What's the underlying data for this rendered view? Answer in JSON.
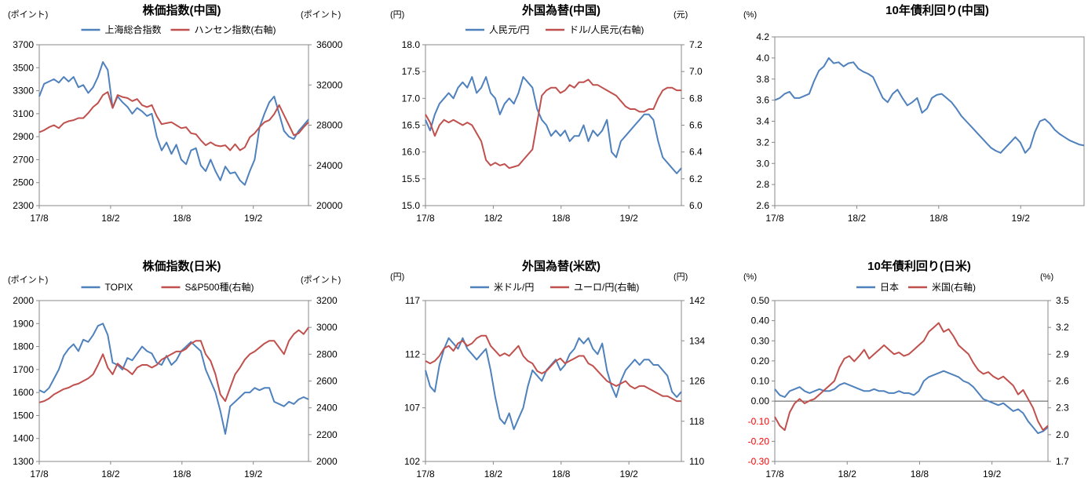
{
  "colors": {
    "blue": "#4F81BD",
    "red": "#C0504D",
    "negative_tick": "#FF0000",
    "axis": "#888888",
    "text": "#000000"
  },
  "chart_data": [
    {
      "type": "line",
      "title": "株価指数(中国)",
      "ylabel_left": "(ポイント)",
      "ylabel_right": "(ポイント)",
      "x_ticks": [
        "17/8",
        "18/2",
        "18/8",
        "19/2"
      ],
      "ylim_left": [
        2300,
        3700
      ],
      "yticks_left": [
        2300,
        2500,
        2700,
        2900,
        3100,
        3300,
        3500,
        3700
      ],
      "ylim_right": [
        20000,
        36000
      ],
      "yticks_right": [
        20000,
        24000,
        28000,
        32000,
        36000
      ],
      "legend_position": "top",
      "zero_line": false,
      "series": [
        {
          "name": "上海総合指数",
          "axis": "left",
          "color": "#4F81BD",
          "values": [
            3250,
            3360,
            3380,
            3400,
            3370,
            3420,
            3380,
            3420,
            3330,
            3350,
            3280,
            3330,
            3420,
            3550,
            3480,
            3150,
            3250,
            3200,
            3160,
            3100,
            3150,
            3120,
            3080,
            3100,
            2900,
            2780,
            2850,
            2750,
            2830,
            2700,
            2660,
            2780,
            2800,
            2650,
            2600,
            2700,
            2600,
            2520,
            2640,
            2580,
            2590,
            2520,
            2480,
            2600,
            2700,
            2980,
            3100,
            3200,
            3250,
            3100,
            2950,
            2900,
            2880,
            2950,
            3000,
            3050
          ]
        },
        {
          "name": "ハンセン指数(右軸)",
          "axis": "right",
          "color": "#C0504D",
          "values": [
            27300,
            27500,
            27800,
            28000,
            27700,
            28200,
            28400,
            28500,
            28700,
            28700,
            29200,
            29800,
            30200,
            31000,
            31300,
            29700,
            31000,
            30800,
            30700,
            30400,
            30600,
            30000,
            29800,
            30000,
            28900,
            28100,
            28200,
            28300,
            28000,
            27700,
            27800,
            27200,
            27100,
            26500,
            26000,
            26300,
            26000,
            25900,
            26000,
            25500,
            26100,
            25500,
            25800,
            26800,
            27200,
            27800,
            28300,
            28500,
            29100,
            30000,
            29000,
            28000,
            27000,
            27200,
            27800,
            28300
          ]
        }
      ]
    },
    {
      "type": "line",
      "title": "外国為替(中国)",
      "ylabel_left": "(円)",
      "ylabel_right": "(元)",
      "x_ticks": [
        "17/8",
        "18/2",
        "18/8",
        "19/2"
      ],
      "ylim_left": [
        15.0,
        18.0
      ],
      "yticks_left": [
        15.0,
        15.5,
        16.0,
        16.5,
        17.0,
        17.5,
        18.0
      ],
      "ylim_right": [
        6.0,
        7.2
      ],
      "yticks_right": [
        6.0,
        6.2,
        6.4,
        6.6,
        6.8,
        7.0,
        7.2
      ],
      "legend_position": "top",
      "zero_line": false,
      "series": [
        {
          "name": "人民元/円",
          "axis": "left",
          "color": "#4F81BD",
          "values": [
            16.6,
            16.4,
            16.7,
            16.9,
            17.0,
            17.1,
            17.0,
            17.2,
            17.3,
            17.2,
            17.4,
            17.1,
            17.2,
            17.4,
            17.1,
            17.0,
            16.7,
            16.9,
            17.0,
            16.9,
            17.1,
            17.4,
            17.3,
            17.2,
            16.8,
            16.6,
            16.5,
            16.3,
            16.4,
            16.3,
            16.4,
            16.2,
            16.3,
            16.3,
            16.5,
            16.2,
            16.4,
            16.3,
            16.4,
            16.6,
            16.0,
            15.9,
            16.2,
            16.3,
            16.4,
            16.5,
            16.6,
            16.7,
            16.7,
            16.6,
            16.2,
            15.9,
            15.8,
            15.7,
            15.6,
            15.7
          ]
        },
        {
          "name": "ドル/人民元(右軸)",
          "axis": "right",
          "color": "#C0504D",
          "values": [
            6.68,
            6.62,
            6.52,
            6.6,
            6.64,
            6.62,
            6.64,
            6.62,
            6.6,
            6.62,
            6.6,
            6.54,
            6.48,
            6.34,
            6.3,
            6.32,
            6.3,
            6.31,
            6.28,
            6.29,
            6.3,
            6.34,
            6.38,
            6.42,
            6.62,
            6.82,
            6.86,
            6.88,
            6.88,
            6.84,
            6.86,
            6.9,
            6.88,
            6.92,
            6.92,
            6.94,
            6.9,
            6.9,
            6.88,
            6.86,
            6.84,
            6.82,
            6.78,
            6.74,
            6.72,
            6.72,
            6.7,
            6.7,
            6.72,
            6.72,
            6.8,
            6.86,
            6.88,
            6.88,
            6.86,
            6.86
          ]
        }
      ]
    },
    {
      "type": "line",
      "title": "10年債利回り(中国)",
      "ylabel_left": "(%)",
      "x_ticks": [
        "17/8",
        "18/2",
        "18/8",
        "19/2"
      ],
      "ylim_left": [
        2.6,
        4.2
      ],
      "yticks_left": [
        2.6,
        2.8,
        3.0,
        3.2,
        3.4,
        3.6,
        3.8,
        4.0,
        4.2
      ],
      "zero_line": false,
      "series": [
        {
          "name": "",
          "axis": "left",
          "color": "#4F81BD",
          "values": [
            3.6,
            3.62,
            3.66,
            3.68,
            3.62,
            3.62,
            3.64,
            3.66,
            3.78,
            3.88,
            3.92,
            4.0,
            3.95,
            3.96,
            3.92,
            3.95,
            3.96,
            3.9,
            3.87,
            3.85,
            3.82,
            3.72,
            3.62,
            3.58,
            3.66,
            3.7,
            3.62,
            3.55,
            3.58,
            3.62,
            3.48,
            3.52,
            3.62,
            3.65,
            3.66,
            3.62,
            3.58,
            3.52,
            3.45,
            3.4,
            3.35,
            3.3,
            3.25,
            3.2,
            3.15,
            3.12,
            3.1,
            3.15,
            3.2,
            3.25,
            3.2,
            3.1,
            3.15,
            3.3,
            3.4,
            3.42,
            3.38,
            3.32,
            3.28,
            3.25,
            3.22,
            3.2,
            3.18,
            3.17
          ]
        }
      ]
    },
    {
      "type": "line",
      "title": "株価指数(日米)",
      "ylabel_left": "(ポイント)",
      "ylabel_right": "(ポイント)",
      "x_ticks": [
        "17/8",
        "18/2",
        "18/8",
        "19/2"
      ],
      "ylim_left": [
        1300,
        2000
      ],
      "yticks_left": [
        1300,
        1400,
        1500,
        1600,
        1700,
        1800,
        1900,
        2000
      ],
      "ylim_right": [
        2000,
        3200
      ],
      "yticks_right": [
        2000,
        2200,
        2400,
        2600,
        2800,
        3000,
        3200
      ],
      "legend_position": "top",
      "zero_line": false,
      "series": [
        {
          "name": "TOPIX",
          "axis": "left",
          "color": "#4F81BD",
          "values": [
            1610,
            1600,
            1620,
            1660,
            1700,
            1760,
            1790,
            1810,
            1780,
            1830,
            1820,
            1850,
            1890,
            1900,
            1850,
            1730,
            1720,
            1700,
            1750,
            1740,
            1770,
            1800,
            1780,
            1770,
            1730,
            1720,
            1760,
            1720,
            1740,
            1780,
            1800,
            1820,
            1800,
            1780,
            1700,
            1650,
            1600,
            1520,
            1420,
            1540,
            1560,
            1580,
            1600,
            1600,
            1620,
            1610,
            1620,
            1620,
            1560,
            1550,
            1540,
            1560,
            1550,
            1570,
            1580,
            1570
          ]
        },
        {
          "name": "S&P500種(右軸)",
          "axis": "right",
          "color": "#C0504D",
          "values": [
            2440,
            2450,
            2470,
            2500,
            2520,
            2540,
            2550,
            2570,
            2580,
            2600,
            2620,
            2650,
            2720,
            2800,
            2700,
            2650,
            2730,
            2700,
            2680,
            2650,
            2700,
            2720,
            2720,
            2700,
            2720,
            2760,
            2780,
            2800,
            2820,
            2820,
            2840,
            2880,
            2900,
            2900,
            2800,
            2750,
            2650,
            2500,
            2450,
            2550,
            2650,
            2700,
            2760,
            2800,
            2820,
            2850,
            2880,
            2900,
            2900,
            2850,
            2800,
            2900,
            2950,
            2980,
            2950,
            3000
          ]
        }
      ]
    },
    {
      "type": "line",
      "title": "外国為替(米欧)",
      "ylabel_left": "(円)",
      "ylabel_right": "(円)",
      "x_ticks": [
        "17/8",
        "18/2",
        "18/8",
        "19/2"
      ],
      "ylim_left": [
        102,
        117
      ],
      "yticks_left": [
        102,
        107,
        112,
        117
      ],
      "ylim_right": [
        110,
        142
      ],
      "yticks_right": [
        110,
        118,
        126,
        134,
        142
      ],
      "legend_position": "top",
      "zero_line": false,
      "series": [
        {
          "name": "米ドル/円",
          "axis": "left",
          "color": "#4F81BD",
          "values": [
            110.5,
            109.0,
            108.5,
            111.0,
            112.5,
            113.5,
            113.0,
            112.5,
            113.5,
            112.5,
            112.0,
            111.5,
            112.0,
            112.5,
            110.5,
            108.0,
            106.0,
            105.5,
            106.5,
            105.0,
            106.0,
            107.0,
            109.0,
            110.5,
            110.0,
            109.5,
            110.5,
            111.0,
            111.5,
            110.5,
            111.0,
            112.0,
            112.5,
            113.5,
            113.0,
            113.5,
            112.5,
            112.0,
            113.0,
            110.5,
            109.0,
            108.0,
            109.5,
            110.5,
            111.0,
            111.5,
            111.0,
            111.5,
            111.5,
            111.0,
            111.0,
            110.5,
            110.0,
            108.5,
            108.0,
            108.5
          ]
        },
        {
          "name": "ユーロ/円(右軸)",
          "axis": "right",
          "color": "#C0504D",
          "values": [
            130.0,
            129.5,
            130.0,
            131.0,
            132.5,
            133.0,
            132.0,
            133.5,
            134.0,
            133.0,
            133.5,
            134.5,
            135.0,
            135.0,
            133.0,
            132.0,
            131.0,
            131.5,
            131.0,
            132.0,
            133.0,
            131.0,
            130.0,
            129.5,
            128.0,
            127.5,
            128.0,
            129.0,
            130.0,
            130.5,
            129.5,
            130.0,
            130.5,
            131.0,
            131.0,
            129.5,
            129.0,
            128.0,
            127.0,
            126.0,
            125.5,
            125.0,
            125.5,
            126.0,
            125.0,
            124.5,
            125.0,
            125.0,
            124.5,
            124.0,
            123.5,
            123.0,
            123.0,
            122.5,
            122.0,
            122.0
          ]
        }
      ]
    },
    {
      "type": "line",
      "title": "10年債利回り(日米)",
      "ylabel_left": "(%)",
      "ylabel_right": "(%)",
      "x_ticks": [
        "17/8",
        "18/2",
        "18/8",
        "19/2"
      ],
      "ylim_left": [
        -0.3,
        0.5
      ],
      "yticks_left": [
        -0.3,
        -0.2,
        -0.1,
        0.0,
        0.1,
        0.2,
        0.3,
        0.4,
        0.5
      ],
      "ylim_right": [
        1.7,
        3.5
      ],
      "yticks_right": [
        1.7,
        2.0,
        2.3,
        2.6,
        2.9,
        3.2,
        3.5
      ],
      "legend_position": "top",
      "zero_line": true,
      "negative_ticks_red": true,
      "series": [
        {
          "name": "日本",
          "axis": "left",
          "color": "#4F81BD",
          "values": [
            0.06,
            0.03,
            0.02,
            0.05,
            0.06,
            0.07,
            0.05,
            0.04,
            0.05,
            0.06,
            0.05,
            0.05,
            0.06,
            0.08,
            0.09,
            0.08,
            0.07,
            0.06,
            0.05,
            0.05,
            0.06,
            0.05,
            0.05,
            0.04,
            0.04,
            0.05,
            0.04,
            0.04,
            0.03,
            0.05,
            0.1,
            0.12,
            0.13,
            0.14,
            0.15,
            0.14,
            0.13,
            0.12,
            0.1,
            0.09,
            0.07,
            0.04,
            0.01,
            0.0,
            -0.01,
            -0.02,
            -0.01,
            -0.03,
            -0.05,
            -0.04,
            -0.06,
            -0.1,
            -0.13,
            -0.16,
            -0.15,
            -0.13
          ]
        },
        {
          "name": "米国(右軸)",
          "axis": "right",
          "color": "#C0504D",
          "values": [
            2.2,
            2.1,
            2.05,
            2.25,
            2.35,
            2.4,
            2.35,
            2.38,
            2.4,
            2.45,
            2.5,
            2.55,
            2.6,
            2.75,
            2.85,
            2.88,
            2.82,
            2.88,
            2.95,
            2.85,
            2.9,
            2.95,
            3.0,
            2.95,
            2.9,
            2.92,
            2.88,
            2.9,
            2.95,
            3.0,
            3.05,
            3.15,
            3.2,
            3.25,
            3.15,
            3.18,
            3.1,
            3.0,
            2.95,
            2.9,
            2.8,
            2.72,
            2.68,
            2.7,
            2.65,
            2.62,
            2.65,
            2.6,
            2.55,
            2.45,
            2.5,
            2.4,
            2.3,
            2.15,
            2.05,
            2.1
          ]
        }
      ]
    }
  ]
}
